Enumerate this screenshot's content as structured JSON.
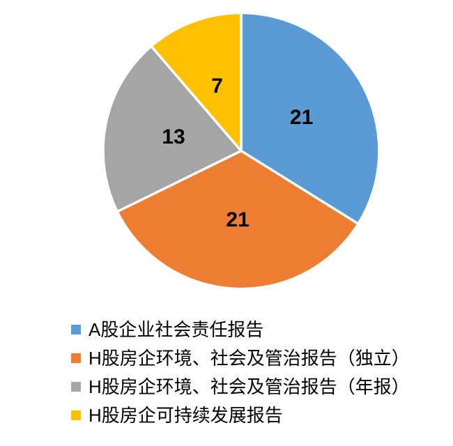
{
  "chart_data": {
    "type": "pie",
    "title": "",
    "categories": [
      "A股企业社会责任报告",
      "H股房企环境、社会及管治报告（独立）",
      "H股房企环境、社会及管治报告（年报）",
      "H股房企可持续发展报告"
    ],
    "values": [
      21,
      21,
      13,
      7
    ],
    "data_labels": [
      "21",
      "21",
      "13",
      "7"
    ],
    "colors": [
      "#5B9BD5",
      "#ED7D31",
      "#A5A5A5",
      "#FFC000"
    ],
    "total": 62,
    "start_angle_deg": 0,
    "direction": "clockwise",
    "slice_border_color": "#FFFFFF",
    "label_color": "#000000",
    "label_radius_fraction": 0.5,
    "legend_position": "bottom-left",
    "grid": "off"
  },
  "legend": {
    "items": [
      {
        "label": "A股企业社会责任报告",
        "color": "#5B9BD5"
      },
      {
        "label": "H股房企环境、社会及管治报告（独立）",
        "color": "#ED7D31"
      },
      {
        "label": "H股房企环境、社会及管治报告（年报）",
        "color": "#A5A5A5"
      },
      {
        "label": "H股房企可持续发展报告",
        "color": "#FFC000"
      }
    ]
  }
}
